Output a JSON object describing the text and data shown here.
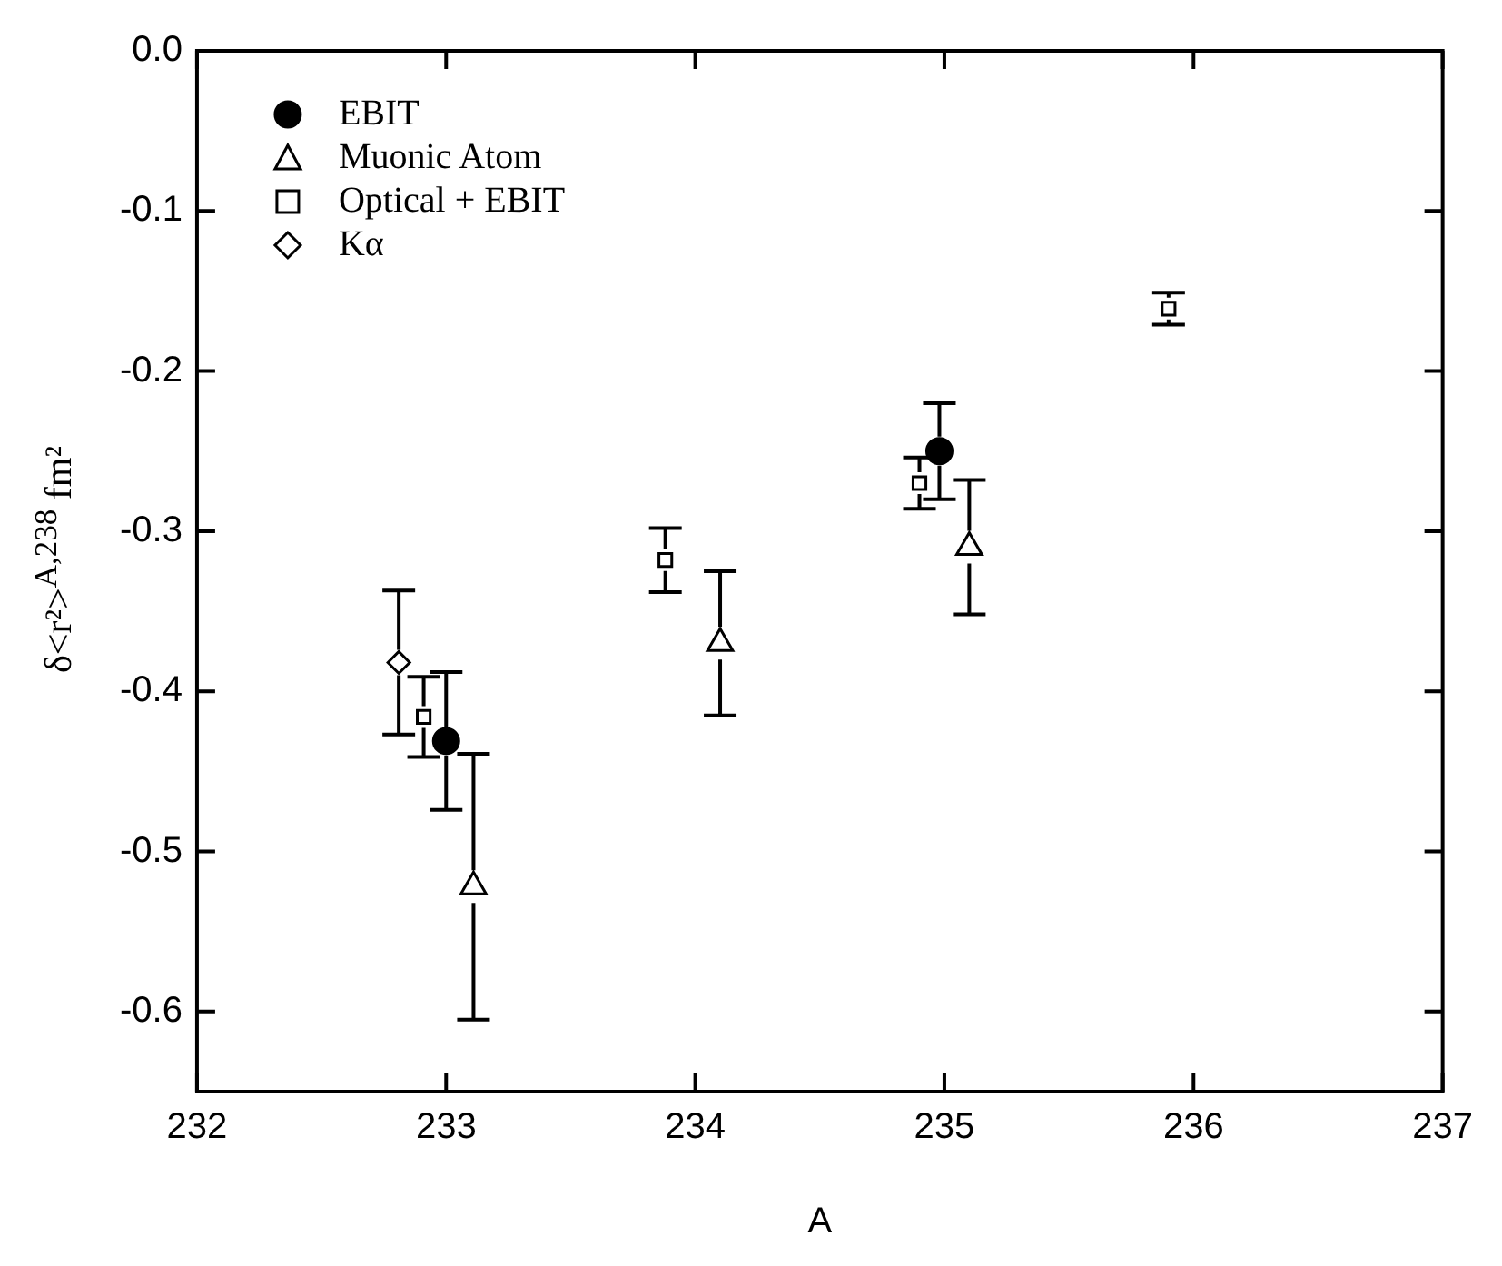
{
  "chart_data": {
    "type": "scatter",
    "xlabel": "A",
    "ylabel": "δ<r²>$^{A,238}$ fm²",
    "xlim": [
      232,
      237
    ],
    "xticks": [
      232,
      233,
      234,
      235,
      236,
      237
    ],
    "ylim": [
      -0.65,
      0
    ],
    "yticks": [
      {
        "value": 0,
        "label": "0.0"
      },
      -0.1,
      -0.2,
      -0.3,
      -0.4,
      -0.5,
      -0.6
    ],
    "grid": false,
    "legend": "top left",
    "series": [
      {
        "name": "EBIT",
        "color": "#000000",
        "marker": "circle",
        "x": [
          233.0,
          234.98
        ],
        "values": [
          -0.431,
          -0.25
        ],
        "errors": [
          0.043,
          0.03
        ]
      },
      {
        "name": "Muonic Atom",
        "color": "#000000",
        "marker": "triangle",
        "x": [
          233.11,
          234.1,
          235.1
        ],
        "values": [
          -0.522,
          -0.37,
          -0.31
        ],
        "errors": [
          0.083,
          0.045,
          0.042
        ]
      },
      {
        "name": "Optical + EBIT",
        "color": "#000000",
        "marker": "square",
        "x": [
          232.91,
          233.88,
          234.9,
          235.9
        ],
        "values": [
          -0.416,
          -0.318,
          -0.27,
          -0.161
        ],
        "errors": [
          0.025,
          0.02,
          0.016,
          0.01
        ]
      },
      {
        "name": "Kα",
        "color": "#000000",
        "marker": "diamond",
        "x": [
          232.81
        ],
        "values": [
          -0.382
        ],
        "errors": [
          0.045
        ]
      }
    ]
  }
}
